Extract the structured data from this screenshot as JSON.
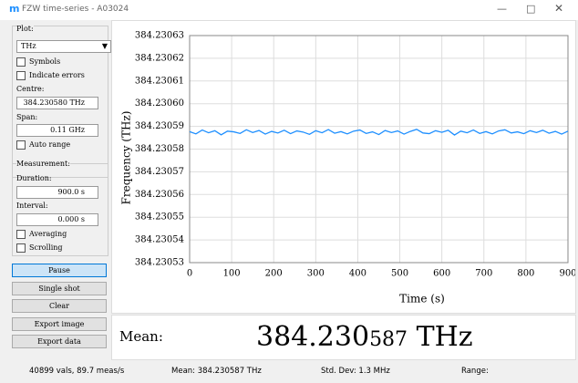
{
  "window": {
    "title": "FZW time-series - A03024"
  },
  "sidebar": {
    "plot_group": "Plot:",
    "unit_select": "THz",
    "symbols": "Symbols",
    "indicate_errors": "Indicate errors",
    "centre_label": "Centre:",
    "centre_value": "384.230580 THz",
    "span_label": "Span:",
    "span_value": "0.11 GHz",
    "auto_range": "Auto range",
    "measurement_group": "Measurement:",
    "duration_label": "Duration:",
    "duration_value": "900.0 s",
    "interval_label": "Interval:",
    "interval_value": "0.000 s",
    "averaging": "Averaging",
    "scrolling": "Scrolling",
    "buttons": [
      "Pause",
      "Single shot",
      "Clear",
      "Export image",
      "Export data"
    ]
  },
  "chart_data": {
    "type": "line",
    "x_label": "Time (s)",
    "y_label": "Frequency (THz)",
    "grid": true,
    "xlim": [
      0,
      900
    ],
    "xticks": [
      0,
      100,
      200,
      300,
      400,
      500,
      600,
      700,
      800,
      900
    ],
    "ylim": [
      384.23053,
      384.23063
    ],
    "yticks": [
      384.23053,
      384.23054,
      384.23055,
      384.23056,
      384.23057,
      384.23058,
      384.23059,
      {
        "value": 384.2306,
        "label": "384.23060"
      },
      384.23061,
      384.23062,
      384.23063
    ],
    "x": [
      0,
      15,
      30,
      45,
      60,
      75,
      90,
      105,
      120,
      135,
      150,
      165,
      180,
      195,
      210,
      225,
      240,
      255,
      270,
      285,
      300,
      315,
      330,
      345,
      360,
      375,
      390,
      405,
      420,
      435,
      450,
      465,
      480,
      495,
      510,
      525,
      540,
      555,
      570,
      585,
      600,
      615,
      630,
      645,
      660,
      675,
      690,
      705,
      720,
      735,
      750,
      765,
      780,
      795,
      810,
      825,
      840,
      855,
      870,
      885,
      900
    ],
    "series": [
      {
        "color": "#1e8fff",
        "values": [
          384.2305877,
          384.2305867,
          384.2305884,
          384.2305872,
          384.2305881,
          384.2305863,
          384.2305879,
          384.2305876,
          384.2305869,
          384.2305885,
          384.2305873,
          384.2305882,
          384.2305866,
          384.2305878,
          384.2305871,
          384.2305883,
          384.2305868,
          384.230588,
          384.2305875,
          384.2305865,
          384.2305881,
          384.2305872,
          384.2305886,
          384.230587,
          384.2305877,
          384.2305867,
          384.2305879,
          384.2305884,
          384.2305869,
          384.2305876,
          384.2305864,
          384.2305882,
          384.2305873,
          384.230588,
          384.2305866,
          384.2305878,
          384.2305887,
          384.2305871,
          384.2305868,
          384.2305881,
          384.2305874,
          384.2305883,
          384.2305862,
          384.2305879,
          384.2305872,
          384.2305884,
          384.2305869,
          384.2305877,
          384.2305867,
          384.230588,
          384.2305885,
          384.2305871,
          384.2305876,
          384.2305868,
          384.2305881,
          384.2305873,
          384.2305883,
          384.230587,
          384.2305878,
          384.2305866,
          384.2305879
        ]
      }
    ]
  },
  "mean_display": {
    "label": "Mean:",
    "value_main": "384.230",
    "value_fine": "587",
    "unit": "THz"
  },
  "status_bar": {
    "count": "40899 vals, 89.7 meas/s",
    "mean": "Mean: 384.230587 THz",
    "std_dev": "Std. Dev: 1.3 MHz",
    "range": "Range:"
  }
}
